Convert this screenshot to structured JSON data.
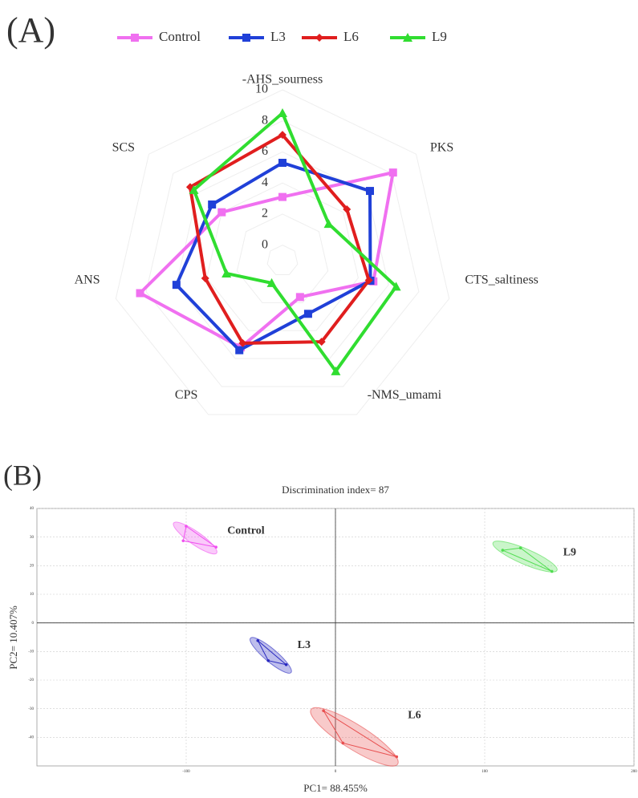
{
  "chart_data": [
    {
      "type": "radar",
      "label": "(A)",
      "categories": [
        "-AHS_sourness",
        "PKS",
        "CTS_saltiness",
        "-NMS_umami",
        "CPS",
        "ANS",
        "SCS"
      ],
      "rlim": [
        -1,
        10
      ],
      "rticks": [
        0,
        2,
        4,
        6,
        8,
        10
      ],
      "grid": true,
      "legend": "top",
      "series": [
        {
          "name": "Control",
          "color": "#f070f0",
          "marker": "square",
          "values": [
            3.1,
            8.1,
            5.0,
            1.6,
            5.2,
            8.4,
            4.0
          ]
        },
        {
          "name": "L3",
          "color": "#2040d8",
          "marker": "square",
          "values": [
            5.3,
            6.2,
            4.8,
            2.8,
            5.4,
            6.0,
            4.8
          ]
        },
        {
          "name": "L6",
          "color": "#e01e1e",
          "marker": "diamond",
          "values": [
            7.1,
            4.3,
            4.7,
            4.8,
            4.9,
            4.1,
            6.6
          ]
        },
        {
          "name": "L9",
          "color": "#30dd30",
          "marker": "triangle",
          "values": [
            8.5,
            2.8,
            6.5,
            6.9,
            0.6,
            2.7,
            6.3
          ]
        }
      ]
    },
    {
      "type": "scatter",
      "label": "(B)",
      "title": "Discrimination index= 87",
      "x_label": "PC1= 88.455%",
      "y_label": "PC2= 10.407%",
      "xlim": [
        -200,
        200
      ],
      "ylim": [
        -50,
        40
      ],
      "xticks": [
        -100,
        0,
        100,
        200
      ],
      "yticks": [
        -40,
        -30,
        -20,
        -10,
        0,
        10,
        20,
        30,
        40
      ],
      "grid": true,
      "series": [
        {
          "name": "Control",
          "color": "#f050f0",
          "x": [
            -100,
            -102,
            -80
          ],
          "y": [
            33.8,
            28.7,
            26.5
          ]
        },
        {
          "name": "L3",
          "color": "#2828c0",
          "x": [
            -52,
            -45,
            -33
          ],
          "y": [
            -6.2,
            -13.2,
            -14.6
          ]
        },
        {
          "name": "L6",
          "color": "#e85050",
          "x": [
            -8,
            5,
            41
          ],
          "y": [
            -30.7,
            -42,
            -46.8
          ]
        },
        {
          "name": "L9",
          "color": "#50dd50",
          "x": [
            112,
            124,
            145
          ],
          "y": [
            25.4,
            26.2,
            18
          ]
        }
      ]
    }
  ]
}
